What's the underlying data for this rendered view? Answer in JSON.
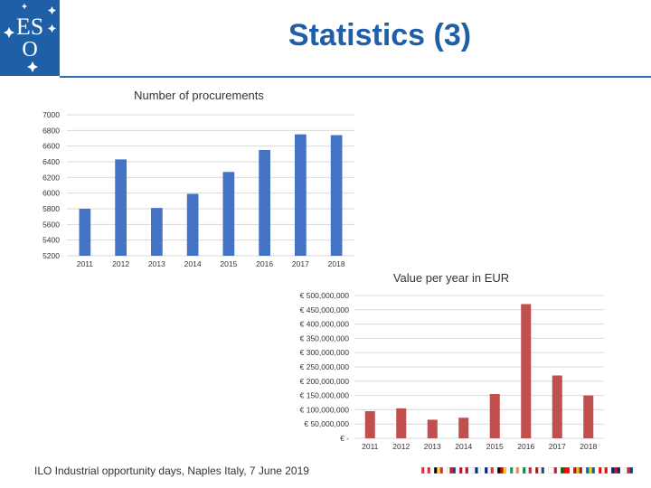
{
  "slide": {
    "title": "Statistics (3)",
    "footer": "ILO Industrial opportunity days, Naples Italy, 7 June 2019"
  },
  "logo": {
    "text_top": "ES",
    "text_bottom": "O",
    "color": "#1f5fa8"
  },
  "flags": [
    {
      "name": "austria-flag",
      "colors": [
        "#ed2939",
        "#ffffff",
        "#ed2939"
      ]
    },
    {
      "name": "belgium-flag",
      "colors": [
        "#000000",
        "#fae042",
        "#ed2939"
      ]
    },
    {
      "name": "czech-flag",
      "colors": [
        "#ffffff",
        "#d7141a",
        "#11457e"
      ]
    },
    {
      "name": "denmark-flag",
      "colors": [
        "#c60c30",
        "#ffffff",
        "#c60c30"
      ]
    },
    {
      "name": "finland-flag",
      "colors": [
        "#ffffff",
        "#003580",
        "#ffffff"
      ]
    },
    {
      "name": "france-flag",
      "colors": [
        "#002395",
        "#ffffff",
        "#ed2939"
      ]
    },
    {
      "name": "germany-flag",
      "colors": [
        "#000000",
        "#dd0000",
        "#ffce00"
      ]
    },
    {
      "name": "ireland-flag",
      "colors": [
        "#169b62",
        "#ffffff",
        "#ff883e"
      ]
    },
    {
      "name": "italy-flag",
      "colors": [
        "#009246",
        "#ffffff",
        "#ce2b37"
      ]
    },
    {
      "name": "netherlands-flag",
      "colors": [
        "#ae1c28",
        "#ffffff",
        "#21468b"
      ]
    },
    {
      "name": "poland-flag",
      "colors": [
        "#ffffff",
        "#ffffff",
        "#dc143c"
      ]
    },
    {
      "name": "portugal-flag",
      "colors": [
        "#006600",
        "#ff0000",
        "#ff0000"
      ]
    },
    {
      "name": "spain-flag",
      "colors": [
        "#aa151b",
        "#f1bf00",
        "#aa151b"
      ]
    },
    {
      "name": "sweden-flag",
      "colors": [
        "#006aa7",
        "#fecc00",
        "#006aa7"
      ]
    },
    {
      "name": "switzerland-flag",
      "colors": [
        "#ff0000",
        "#ffffff",
        "#ff0000"
      ]
    },
    {
      "name": "uk-flag",
      "colors": [
        "#012169",
        "#c8102e",
        "#012169"
      ]
    },
    {
      "name": "chile-flag",
      "colors": [
        "#ffffff",
        "#d52b1e",
        "#0039a6"
      ]
    }
  ],
  "chart_data": [
    {
      "type": "bar",
      "title": "Number of procurements",
      "categories": [
        "2011",
        "2012",
        "2013",
        "2014",
        "2015",
        "2016",
        "2017",
        "2018"
      ],
      "values": [
        5800,
        6430,
        5810,
        5990,
        6270,
        6550,
        6750,
        6740
      ],
      "ylim": [
        5200,
        7000
      ],
      "yticks": [
        5200,
        5400,
        5600,
        5800,
        6000,
        6200,
        6400,
        6600,
        6800,
        7000
      ],
      "ytick_labels": [
        "5200",
        "5400",
        "5600",
        "5800",
        "6000",
        "6200",
        "6400",
        "6600",
        "6800",
        "7000"
      ],
      "color": "#4472c4",
      "grid": true
    },
    {
      "type": "bar",
      "title": "Value per year in EUR",
      "categories": [
        "2011",
        "2012",
        "2013",
        "2014",
        "2015",
        "2016",
        "2017",
        "2018"
      ],
      "values": [
        95000000,
        105000000,
        65000000,
        72000000,
        155000000,
        470000000,
        220000000,
        150000000
      ],
      "ylim": [
        0,
        500000000
      ],
      "yticks": [
        0,
        50000000,
        100000000,
        150000000,
        200000000,
        250000000,
        300000000,
        350000000,
        400000000,
        450000000,
        500000000
      ],
      "ytick_labels": [
        "€ -",
        "€ 50,000,000",
        "€ 100,000,000",
        "€ 150,000,000",
        "€ 200,000,000",
        "€ 250,000,000",
        "€ 300,000,000",
        "€ 350,000,000",
        "€ 400,000,000",
        "€ 450,000,000",
        "€ 500,000,000"
      ],
      "color": "#c0504d",
      "grid": true
    }
  ]
}
